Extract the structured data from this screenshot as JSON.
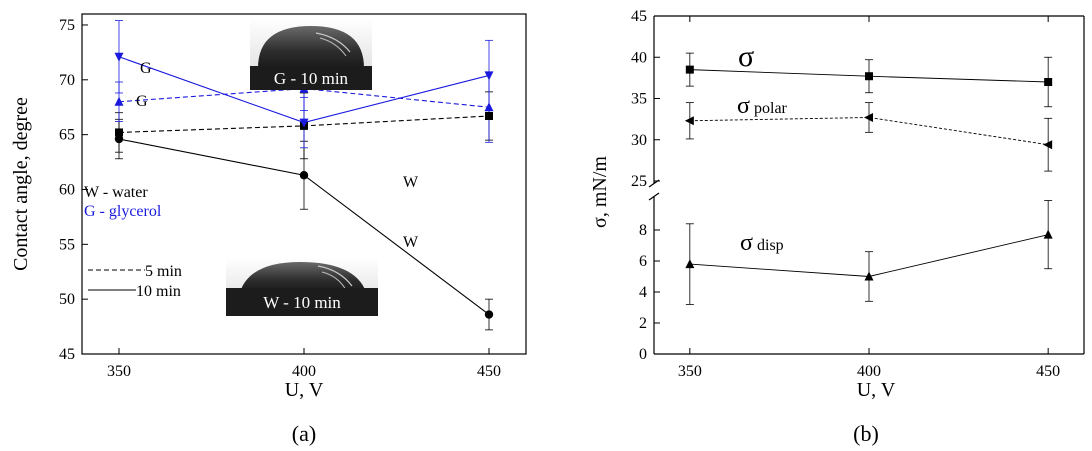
{
  "colors": {
    "water": "#000000",
    "glycerol": "#1a1adf"
  },
  "chart_data": [
    {
      "type": "line",
      "panel_label": "(a)",
      "xlabel": "U, V",
      "ylabel": "Contact angle, degree",
      "xlim": [
        340,
        460
      ],
      "ylim": [
        45,
        76
      ],
      "x": [
        350,
        400,
        450
      ],
      "xticks": [
        350,
        400,
        450
      ],
      "yticks": [
        45,
        50,
        55,
        60,
        65,
        70,
        75
      ],
      "series": [
        {
          "key": "w5",
          "fluid": "water",
          "time": "5 min",
          "marker": "square",
          "dash": true,
          "values": [
            65.2,
            65.8,
            66.7
          ],
          "err": [
            1.8,
            3.0,
            2.2
          ]
        },
        {
          "key": "w10",
          "fluid": "water",
          "time": "10 min",
          "marker": "circle",
          "dash": false,
          "values": [
            64.6,
            61.3,
            48.6
          ],
          "err": [
            1.8,
            3.1,
            1.4
          ]
        },
        {
          "key": "g5",
          "fluid": "glycerol",
          "time": "5 min",
          "marker": "triangle-up",
          "dash": true,
          "values": [
            68.0,
            69.2,
            67.5
          ],
          "err": [
            1.8,
            2.0,
            3.2
          ]
        },
        {
          "key": "g10",
          "fluid": "glycerol",
          "time": "10 min",
          "marker": "triangle-down",
          "dash": false,
          "values": [
            72.1,
            66.1,
            70.4
          ],
          "err": [
            3.3,
            2.3,
            3.2
          ]
        }
      ],
      "series_labels": [
        {
          "text": "G",
          "fluid": "glycerol"
        },
        {
          "text": "G",
          "fluid": "glycerol"
        },
        {
          "text": "W",
          "fluid": "water"
        },
        {
          "text": "W",
          "fluid": "water"
        }
      ],
      "legend": {
        "fluids": [
          {
            "text": "W - water",
            "fluid": "water"
          },
          {
            "text": "G - glycerol",
            "fluid": "glycerol"
          }
        ],
        "times": [
          {
            "text": "5 min",
            "dash": true
          },
          {
            "text": "10 min",
            "dash": false
          }
        ]
      },
      "insets": [
        {
          "text": "G - 10 min"
        },
        {
          "text": "W - 10 min"
        }
      ]
    },
    {
      "type": "line",
      "panel_label": "(b)",
      "xlabel": "U, V",
      "ylabel": "σ, mN/m",
      "xlim": [
        340,
        460
      ],
      "x": [
        350,
        400,
        450
      ],
      "xticks": [
        350,
        400,
        450
      ],
      "broken_axis": true,
      "upper_ylim": [
        25,
        45
      ],
      "upper_yticks": [
        25,
        30,
        35,
        40,
        45
      ],
      "lower_ylim": [
        0,
        10
      ],
      "lower_yticks": [
        0,
        2,
        4,
        6,
        8
      ],
      "series": [
        {
          "key": "sigma",
          "name": "σ",
          "segment": "upper",
          "marker": "square",
          "dash": false,
          "values": [
            38.5,
            37.7,
            37.0
          ],
          "err": [
            2.0,
            2.0,
            3.0
          ]
        },
        {
          "key": "polar",
          "name": "σpolar",
          "segment": "upper",
          "marker": "triangle-left",
          "dash": true,
          "values": [
            32.3,
            32.7,
            29.4
          ],
          "err": [
            2.2,
            1.8,
            3.2
          ]
        },
        {
          "key": "disp",
          "name": "σdisp",
          "segment": "lower",
          "marker": "triangle-up",
          "dash": false,
          "values": [
            5.8,
            5.0,
            7.7
          ],
          "err": [
            2.6,
            1.6,
            2.2
          ]
        }
      ],
      "labels": {
        "sigma": "σ",
        "polar_base": "σ",
        "polar_sub": "polar",
        "disp_base": "σ",
        "disp_sub": "disp"
      }
    }
  ]
}
